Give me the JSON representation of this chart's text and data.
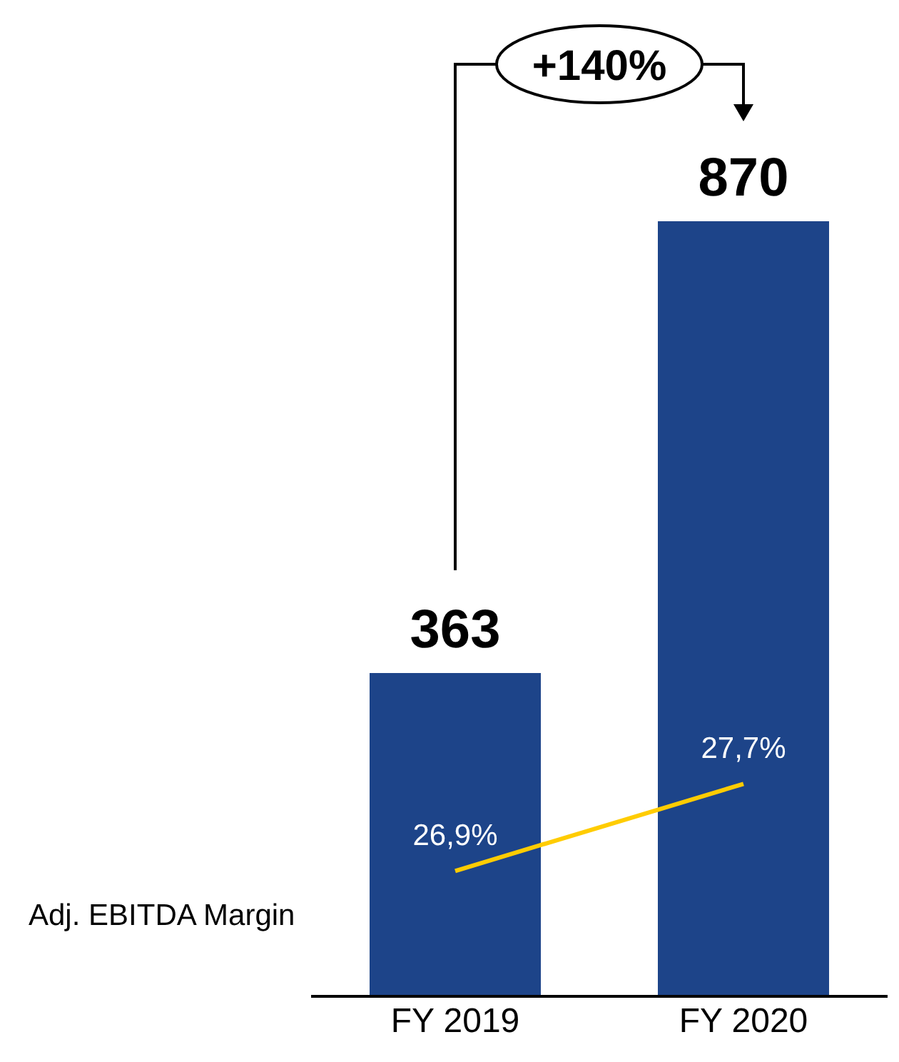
{
  "chart_data": {
    "type": "bar",
    "categories": [
      "FY 2019",
      "FY 2020"
    ],
    "series": [
      {
        "values": [
          363,
          870
        ],
        "color": "#1d4489"
      },
      {
        "name": "Adj. EBITDA Margin",
        "type": "line",
        "axis": "y2",
        "color": "#ffcc00",
        "values": [
          26.9,
          27.7
        ],
        "value_labels": [
          "26,9%",
          "27,7%"
        ]
      }
    ],
    "data_labels": true,
    "marker": "none",
    "annotations": [
      "+140%"
    ]
  }
}
